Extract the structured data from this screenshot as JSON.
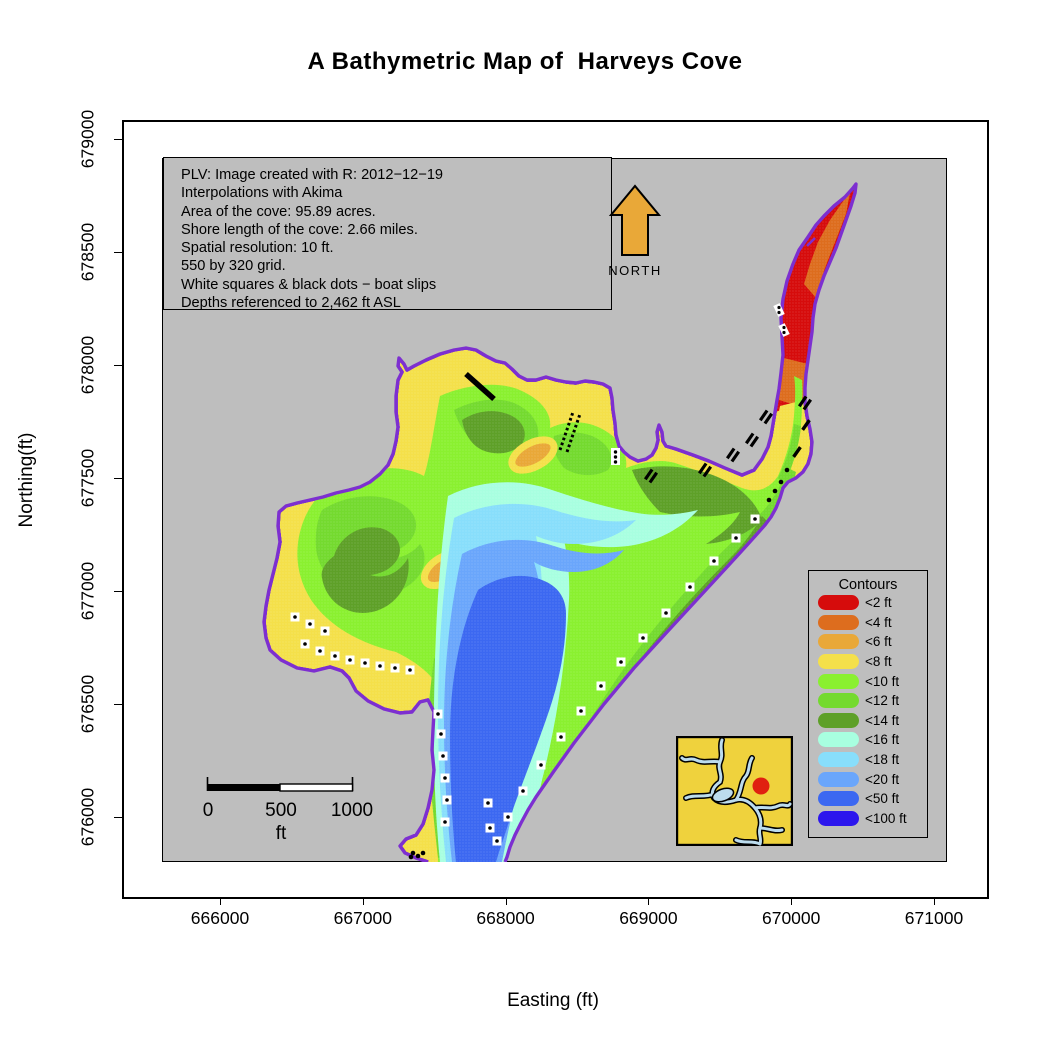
{
  "title": "A Bathymetric Map of  Harveys Cove",
  "axes": {
    "y_label": "Northing(ft)",
    "x_label": "Easting (ft)",
    "x_ticks": [
      "666000",
      "667000",
      "668000",
      "669000",
      "670000",
      "671000"
    ],
    "y_ticks": [
      "679000",
      "678500",
      "678000",
      "677500",
      "677000",
      "676500",
      "676000"
    ]
  },
  "annotation": {
    "lines": [
      "PLV: Image created with R: 2012−12−19",
      "Interpolations with Akima",
      "Area of the cove: 95.89 acres.",
      "Shore length of the cove: 2.66 miles.",
      "Spatial resolution: 10 ft.",
      "550 by 320 grid.",
      "White squares & black dots − boat slips",
      "Depths referenced to 2,462 ft ASL"
    ]
  },
  "north_arrow": {
    "label": "NORTH",
    "color": "#E9A838"
  },
  "scale_bar": {
    "tick0": "0",
    "tick500": "500",
    "tick1000": "1000",
    "unit": "ft"
  },
  "legend": {
    "title": "Contours",
    "entries": [
      {
        "id": "d2",
        "label": "<2 ft",
        "color": "#D60C0C"
      },
      {
        "id": "d4",
        "label": "<4 ft",
        "color": "#DD6D1E"
      },
      {
        "id": "d6",
        "label": "<6 ft",
        "color": "#E9A838"
      },
      {
        "id": "d8",
        "label": "<8 ft",
        "color": "#F4E04A"
      },
      {
        "id": "d10",
        "label": "<10 ft",
        "color": "#8AF030"
      },
      {
        "id": "d12",
        "label": "<12 ft",
        "color": "#74DA2F"
      },
      {
        "id": "d14",
        "label": "<14 ft",
        "color": "#5EA028"
      },
      {
        "id": "d16",
        "label": "<16 ft",
        "color": "#A8FFE0"
      },
      {
        "id": "d18",
        "label": "<18 ft",
        "color": "#88DEFB"
      },
      {
        "id": "d20",
        "label": "<20 ft",
        "color": "#6AA6FB"
      },
      {
        "id": "d50",
        "label": "<50 ft",
        "color": "#3C68F1"
      },
      {
        "id": "d100",
        "label": "<100 ft",
        "color": "#2C16ED"
      }
    ]
  },
  "map_colors": {
    "panel_gray": "#BEBEBE",
    "shoreline_purple": "#7D2FD0",
    "inset_land_yellow": "#EFD23D",
    "inset_water_blue": "#BCDCEE",
    "inset_marker_red": "#E02010"
  }
}
